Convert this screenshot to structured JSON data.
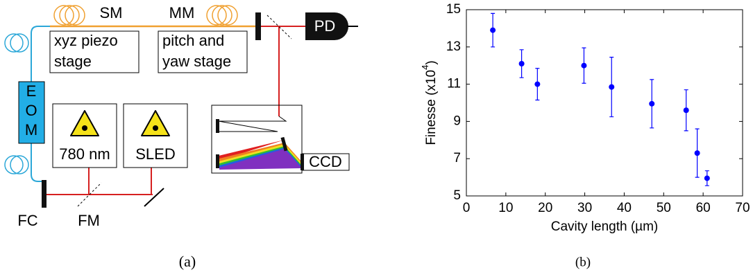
{
  "diagram": {
    "labels": {
      "sm": "SM",
      "mm": "MM",
      "xyz_stage": [
        "xyz piezo",
        "stage"
      ],
      "pitch_stage": [
        "pitch and",
        "yaw stage"
      ],
      "pd": "PD",
      "eom": [
        "E",
        "O",
        "M"
      ],
      "laser": "780 nm",
      "sled": "SLED",
      "ccd": "CCD",
      "fc": "FC",
      "fm": "FM"
    },
    "caption": "(a)"
  },
  "chart_caption": "(b)",
  "chart_data": {
    "type": "scatter",
    "x": [
      6.7,
      14,
      18,
      29.8,
      36.8,
      47,
      55.7,
      58.5,
      61
    ],
    "values": [
      13.9,
      12.1,
      11.0,
      12.0,
      10.85,
      9.95,
      9.6,
      7.3,
      5.95
    ],
    "errors": [
      0.9,
      0.75,
      0.85,
      0.95,
      1.6,
      1.3,
      1.1,
      1.3,
      0.4
    ],
    "color": "#0000ff",
    "xlabel": "Cavity length (µm)",
    "ylabel": "Finesse (x10",
    "ylabel_exponent": "4",
    "ylabel_suffix": ")",
    "xlim": [
      0,
      70
    ],
    "xticks": [
      0,
      10,
      20,
      30,
      40,
      50,
      60,
      70
    ],
    "ylim": [
      5,
      15
    ],
    "yticks": [
      5,
      7,
      9,
      11,
      13,
      15
    ]
  }
}
